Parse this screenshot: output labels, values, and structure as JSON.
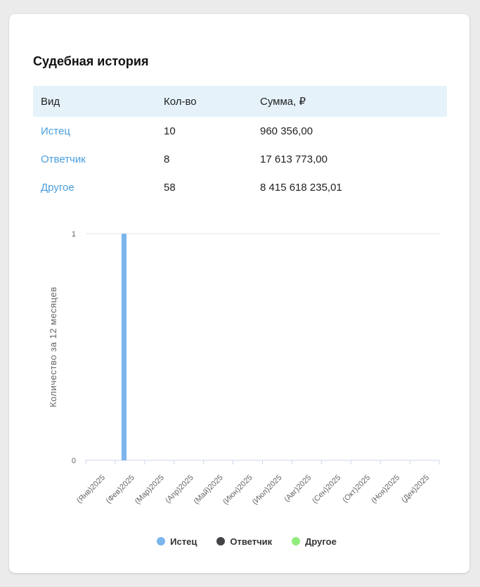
{
  "card": {
    "title": "Судебная история"
  },
  "table": {
    "headers": [
      "Вид",
      "Кол-во",
      "Сумма, ₽"
    ],
    "rows": [
      {
        "type": "Истец",
        "count": "10",
        "sum": "960 356,00"
      },
      {
        "type": "Ответчик",
        "count": "8",
        "sum": "17 613 773,00"
      },
      {
        "type": "Другое",
        "count": "58",
        "sum": "8 415 618 235,01"
      }
    ]
  },
  "colors": {
    "page_bg": "#ebebeb",
    "card_bg": "#ffffff",
    "header_bg": "#e5f2fa",
    "link": "#4a9edd",
    "text": "#1f1f1f",
    "axis_line": "#ccd6eb",
    "grid_line": "#e6e6e6",
    "chart_label": "#666666",
    "legend_text": "#333333"
  },
  "chart_data": {
    "type": "bar",
    "title": "",
    "categories": [
      "(Янв)2025",
      "(Фев)2025",
      "(Мар)2025",
      "(Апр)2025",
      "(Май)2025",
      "(Июн)2025",
      "(Июл)2025",
      "(Авг)2025",
      "(Сен)2025",
      "(Окт)2025",
      "(Ноя)2025",
      "(Дек)2025"
    ],
    "series": [
      {
        "name": "Истец",
        "color": "#7cb5ec",
        "values": [
          0,
          1,
          0,
          0,
          0,
          0,
          0,
          0,
          0,
          0,
          0,
          0
        ]
      },
      {
        "name": "Ответчик",
        "color": "#434348",
        "values": [
          0,
          0,
          0,
          0,
          0,
          0,
          0,
          0,
          0,
          0,
          0,
          0
        ]
      },
      {
        "name": "Другое",
        "color": "#90ed7d",
        "values": [
          0,
          0,
          0,
          0,
          0,
          0,
          0,
          0,
          0,
          0,
          0,
          0
        ]
      }
    ],
    "xlabel": "",
    "ylabel": "Количество за 12 месяцев",
    "ylim": [
      0,
      1
    ],
    "yticks": [
      0,
      1
    ],
    "grid": "horizontal-gridlines",
    "legend_position": "bottom",
    "x_label_rotation": -45
  }
}
